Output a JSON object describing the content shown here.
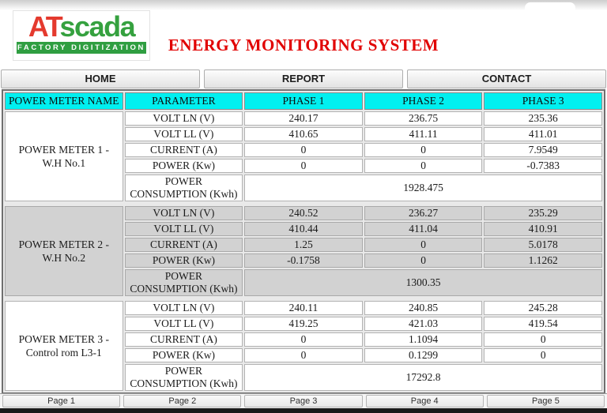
{
  "header": {
    "logo": {
      "part1": "AT",
      "part2": "scada",
      "tagline": "FACTORY DIGITIZATION"
    },
    "title": "ENERGY MONITORING SYSTEM"
  },
  "nav": {
    "items": [
      {
        "label": "HOME"
      },
      {
        "label": "REPORT"
      },
      {
        "label": "CONTACT"
      }
    ]
  },
  "table": {
    "columns": [
      "POWER METER NAME",
      "PARAMETER",
      "PHASE 1",
      "PHASE 2",
      "PHASE 3"
    ],
    "consumption_label": "POWER CONSUMPTION (Kwh)",
    "meters": [
      {
        "name": "POWER METER 1 - W.H No.1",
        "highlighted": false,
        "rows": [
          {
            "parameter": "VOLT LN (V)",
            "values": [
              "240.17",
              "236.75",
              "235.36"
            ]
          },
          {
            "parameter": "VOLT LL (V)",
            "values": [
              "410.65",
              "411.11",
              "411.01"
            ]
          },
          {
            "parameter": "CURRENT (A)",
            "values": [
              "0",
              "0",
              "7.9549"
            ]
          },
          {
            "parameter": "POWER (Kw)",
            "values": [
              "0",
              "0",
              "-0.7383"
            ]
          }
        ],
        "consumption": "1928.475"
      },
      {
        "name": "POWER METER 2 - W.H No.2",
        "highlighted": true,
        "rows": [
          {
            "parameter": "VOLT LN (V)",
            "values": [
              "240.52",
              "236.27",
              "235.29"
            ]
          },
          {
            "parameter": "VOLT LL (V)",
            "values": [
              "410.44",
              "411.04",
              "410.91"
            ]
          },
          {
            "parameter": "CURRENT (A)",
            "values": [
              "1.25",
              "0",
              "5.0178"
            ]
          },
          {
            "parameter": "POWER (Kw)",
            "values": [
              "-0.1758",
              "0",
              "1.1262"
            ]
          }
        ],
        "consumption": "1300.35"
      },
      {
        "name": "POWER METER 3 - Control rom L3-1",
        "highlighted": false,
        "rows": [
          {
            "parameter": "VOLT LN (V)",
            "values": [
              "240.11",
              "240.85",
              "245.28"
            ]
          },
          {
            "parameter": "VOLT LL (V)",
            "values": [
              "419.25",
              "421.03",
              "419.54"
            ]
          },
          {
            "parameter": "CURRENT (A)",
            "values": [
              "0",
              "1.1094",
              "0"
            ]
          },
          {
            "parameter": "POWER (Kw)",
            "values": [
              "0",
              "0.1299",
              "0"
            ]
          }
        ],
        "consumption": "17292.8"
      }
    ]
  },
  "pagination": {
    "items": [
      "Page 1",
      "Page 2",
      "Page 3",
      "Page 4",
      "Page 5"
    ]
  },
  "colors": {
    "header_cyan": "#00f0f0",
    "title_red": "#e10000",
    "logo_red": "#e43a2e",
    "logo_green": "#35a13f",
    "highlight_gray": "#d2d2d2"
  }
}
